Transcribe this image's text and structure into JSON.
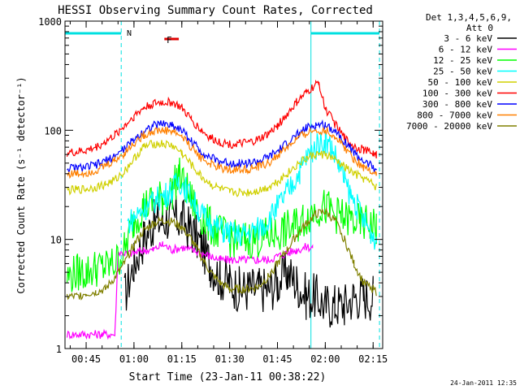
{
  "chart_data": {
    "type": "line",
    "title": "HESSI Observing Summary Count Rates, Corrected",
    "ylabel": "Corrected Count Rate (s⁻¹ detector⁻¹)",
    "xlabel": "Start Time (23-Jan-11 00:38:22)",
    "y_scale": "log",
    "ylim": [
      1,
      1000
    ],
    "y_ticks": [
      1,
      10,
      100,
      1000
    ],
    "y_tick_labels": [
      "1",
      "10",
      "100",
      "1000"
    ],
    "xlim": [
      "00:38:22",
      "02:18:00"
    ],
    "x_ticks": [
      "00:45",
      "01:00",
      "01:15",
      "01:30",
      "01:45",
      "02:00",
      "02:15"
    ],
    "x_tick_labels": [
      "00:45",
      "01:00",
      "01:15",
      "01:30",
      "01:45",
      "02:00",
      "02:15"
    ],
    "timestamp": "24-Jan-2011 12:35",
    "legend_header": [
      "Det 1,3,4,5,6,9,",
      "Att 0"
    ],
    "legend_position": "outside-right",
    "flags": {
      "night_label": "N",
      "flare_label": "F",
      "night_color": "#00e0e0",
      "flare_color": "#e00000",
      "night_intervals": [
        [
          "00:38:22",
          "00:56:00"
        ],
        [
          "01:55:30",
          "02:17:00"
        ]
      ],
      "flare_interval": [
        "01:08:00",
        "01:11:00"
      ]
    },
    "series": [
      {
        "name": "3 - 6 keV",
        "color": "#000000",
        "x": [
          "00:57",
          "01:00",
          "01:03",
          "01:06",
          "01:09",
          "01:12",
          "01:15",
          "01:18",
          "01:21",
          "01:24",
          "01:27",
          "01:30",
          "01:33",
          "01:36",
          "01:39",
          "01:42",
          "01:45",
          "01:48",
          "01:51",
          "01:54",
          "01:57",
          "02:00",
          "02:03",
          "02:06",
          "02:09",
          "02:12",
          "02:15"
        ],
        "y": [
          3,
          6,
          10,
          14,
          15,
          16,
          15,
          12,
          9,
          6,
          4.5,
          4,
          3.5,
          3.5,
          3.5,
          3.5,
          4,
          5,
          4,
          3,
          3,
          2.5,
          2.5,
          2.5,
          3,
          3,
          3
        ]
      },
      {
        "name": "6 - 12 keV",
        "color": "#ff00ff",
        "x": [
          "00:39",
          "00:50",
          "00:54",
          "00:55",
          "00:58",
          "01:00",
          "01:03",
          "01:06",
          "01:09",
          "01:12",
          "01:15",
          "01:18",
          "01:21",
          "01:24",
          "01:27",
          "01:30",
          "01:33",
          "01:36",
          "01:39",
          "01:42",
          "01:45",
          "01:48",
          "01:51",
          "01:54",
          "01:56"
        ],
        "y": [
          1.35,
          1.35,
          1.35,
          7.5,
          7.5,
          7.5,
          8,
          8,
          9,
          8,
          8.5,
          8,
          7.5,
          7,
          6.5,
          6.5,
          6.5,
          6.5,
          6.5,
          6.5,
          7,
          7.5,
          8,
          8.5,
          8.5
        ]
      },
      {
        "name": "12 - 25 keV",
        "color": "#00ff00",
        "x": [
          "00:39",
          "00:42",
          "00:45",
          "00:48",
          "00:51",
          "00:54",
          "00:57",
          "01:00",
          "01:03",
          "01:06",
          "01:09",
          "01:12",
          "01:14",
          "01:17",
          "01:20",
          "01:23",
          "01:26",
          "01:29",
          "01:32",
          "01:35",
          "01:38",
          "01:41",
          "01:44",
          "01:47",
          "01:50",
          "01:53",
          "01:56",
          "01:59",
          "02:02",
          "02:05",
          "02:08",
          "02:11",
          "02:14",
          "02:16"
        ],
        "y": [
          4.5,
          5,
          5,
          5.5,
          5.5,
          6,
          8,
          15,
          20,
          22,
          24,
          28,
          40,
          26,
          18,
          14,
          12,
          10.5,
          10,
          10,
          10,
          10.5,
          11,
          12,
          13,
          15,
          18,
          20,
          18,
          16,
          15,
          14,
          14,
          13
        ]
      },
      {
        "name": "25 - 50 keV",
        "color": "#00ffff",
        "x": [
          "00:58",
          "01:00",
          "01:02",
          "01:04",
          "01:06",
          "01:08",
          "01:10",
          "01:12",
          "01:14",
          "01:16",
          "01:18",
          "01:20",
          "01:22",
          "01:24",
          "01:26",
          "01:28",
          "01:30",
          "01:32",
          "01:34",
          "01:36",
          "01:38",
          "01:40",
          "01:42",
          "01:44",
          "01:46",
          "01:48",
          "01:50",
          "01:52",
          "01:54",
          "01:56",
          "01:58",
          "02:00",
          "02:02",
          "02:04",
          "02:06",
          "02:08",
          "02:10",
          "02:12",
          "02:14",
          "02:16"
        ],
        "y": [
          14,
          16,
          18,
          20,
          22,
          24,
          26,
          28,
          35,
          30,
          24,
          19,
          16,
          14,
          13,
          12,
          11.5,
          11,
          11,
          11.5,
          12,
          13,
          15,
          18,
          22,
          27,
          33,
          42,
          55,
          65,
          75,
          80,
          70,
          50,
          35,
          25,
          20,
          15,
          12,
          10
        ]
      },
      {
        "name": "50 - 100 keV",
        "color": "#d0d000",
        "x": [
          "00:39",
          "00:42",
          "00:45",
          "00:48",
          "00:51",
          "00:54",
          "00:57",
          "01:00",
          "01:03",
          "01:06",
          "01:09",
          "01:12",
          "01:15",
          "01:18",
          "01:21",
          "01:24",
          "01:27",
          "01:30",
          "01:33",
          "01:36",
          "01:39",
          "01:42",
          "01:45",
          "01:48",
          "01:51",
          "01:54",
          "01:57",
          "02:00",
          "02:03",
          "02:06",
          "02:09",
          "02:12",
          "02:15",
          "02:16"
        ],
        "y": [
          28,
          28.5,
          29,
          30,
          32,
          35,
          42,
          55,
          70,
          75,
          75,
          72,
          62,
          48,
          38,
          32,
          29,
          27,
          27,
          27,
          28,
          30,
          34,
          40,
          48,
          55,
          60,
          60,
          54,
          46,
          40,
          36,
          32,
          30
        ]
      },
      {
        "name": "100 - 300 keV",
        "color": "#ff0000",
        "x": [
          "00:39",
          "00:42",
          "00:45",
          "00:48",
          "00:51",
          "00:54",
          "00:57",
          "01:00",
          "01:03",
          "01:06",
          "01:09",
          "01:12",
          "01:15",
          "01:18",
          "01:21",
          "01:24",
          "01:27",
          "01:30",
          "01:33",
          "01:36",
          "01:39",
          "01:42",
          "01:45",
          "01:48",
          "01:51",
          "01:54",
          "01:57",
          "01:58",
          "01:59",
          "02:00",
          "02:03",
          "02:06",
          "02:09",
          "02:12",
          "02:15",
          "02:16"
        ],
        "y": [
          62,
          63,
          65,
          70,
          78,
          90,
          110,
          135,
          160,
          175,
          180,
          180,
          160,
          125,
          100,
          85,
          78,
          75,
          75,
          77,
          82,
          92,
          110,
          140,
          180,
          220,
          260,
          280,
          200,
          160,
          115,
          85,
          72,
          66,
          62,
          60
        ]
      },
      {
        "name": "300 - 800 keV",
        "color": "#0000ff",
        "x": [
          "00:39",
          "00:42",
          "00:45",
          "00:48",
          "00:51",
          "00:54",
          "00:57",
          "01:00",
          "01:03",
          "01:06",
          "01:09",
          "01:12",
          "01:15",
          "01:18",
          "01:21",
          "01:24",
          "01:27",
          "01:30",
          "01:33",
          "01:36",
          "01:39",
          "01:42",
          "01:45",
          "01:48",
          "01:51",
          "01:54",
          "01:57",
          "02:00",
          "02:03",
          "02:06",
          "02:09",
          "02:12",
          "02:15",
          "02:16"
        ],
        "y": [
          45,
          45,
          46,
          48,
          52,
          58,
          68,
          82,
          98,
          110,
          115,
          112,
          100,
          80,
          64,
          56,
          52,
          50,
          50,
          50,
          52,
          56,
          64,
          76,
          90,
          104,
          112,
          112,
          100,
          80,
          62,
          52,
          46,
          44
        ]
      },
      {
        "name": "800 - 7000 keV",
        "color": "#ff8000",
        "x": [
          "00:39",
          "00:42",
          "00:45",
          "00:48",
          "00:51",
          "00:54",
          "00:57",
          "01:00",
          "01:03",
          "01:06",
          "01:09",
          "01:12",
          "01:15",
          "01:18",
          "01:21",
          "01:24",
          "01:27",
          "01:30",
          "01:33",
          "01:36",
          "01:39",
          "01:42",
          "01:45",
          "01:48",
          "01:51",
          "01:54",
          "01:57",
          "02:00",
          "02:03",
          "02:06",
          "02:09",
          "02:12",
          "02:15",
          "02:16"
        ],
        "y": [
          40,
          40,
          41,
          43,
          47,
          53,
          62,
          76,
          90,
          98,
          100,
          98,
          88,
          70,
          56,
          49,
          45,
          44,
          44,
          44,
          46,
          50,
          58,
          70,
          82,
          94,
          100,
          100,
          88,
          70,
          55,
          46,
          42,
          40
        ]
      },
      {
        "name": "7000 - 20000 keV",
        "color": "#808000",
        "x": [
          "00:39",
          "00:42",
          "00:45",
          "00:48",
          "00:51",
          "00:54",
          "00:57",
          "01:00",
          "01:03",
          "01:06",
          "01:09",
          "01:12",
          "01:15",
          "01:18",
          "01:21",
          "01:24",
          "01:27",
          "01:30",
          "01:33",
          "01:36",
          "01:39",
          "01:42",
          "01:45",
          "01:48",
          "01:51",
          "01:54",
          "01:57",
          "02:00",
          "02:03",
          "02:06",
          "02:09",
          "02:12",
          "02:15",
          "02:16"
        ],
        "y": [
          3,
          3,
          3.2,
          3.3,
          3.5,
          4.5,
          6,
          9,
          12,
          14,
          15,
          14.5,
          13,
          10,
          7,
          5,
          4,
          3.5,
          3.5,
          3.5,
          3.7,
          4.5,
          6,
          8,
          11,
          14,
          17,
          18,
          15,
          10,
          6,
          4,
          3.5,
          3.3
        ]
      }
    ]
  }
}
